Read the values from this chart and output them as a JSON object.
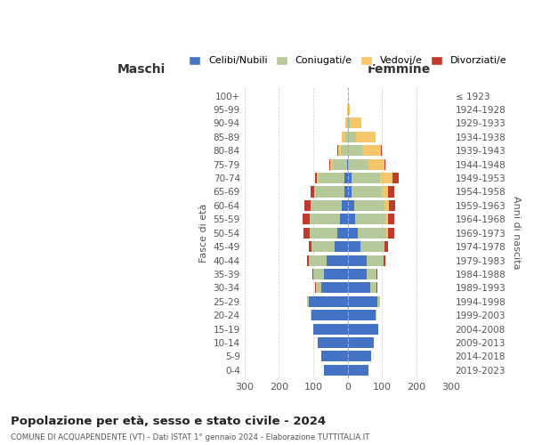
{
  "age_groups": [
    "0-4",
    "5-9",
    "10-14",
    "15-19",
    "20-24",
    "25-29",
    "30-34",
    "35-39",
    "40-44",
    "45-49",
    "50-54",
    "55-59",
    "60-64",
    "65-69",
    "70-74",
    "75-79",
    "80-84",
    "85-89",
    "90-94",
    "95-99",
    "100+"
  ],
  "birth_years": [
    "2019-2023",
    "2014-2018",
    "2009-2013",
    "2004-2008",
    "1999-2003",
    "1994-1998",
    "1989-1993",
    "1984-1988",
    "1979-1983",
    "1974-1978",
    "1969-1973",
    "1964-1968",
    "1959-1963",
    "1954-1958",
    "1949-1953",
    "1944-1948",
    "1939-1943",
    "1934-1938",
    "1929-1933",
    "1924-1928",
    "≤ 1923"
  ],
  "maschi": {
    "celibi": [
      68,
      78,
      88,
      100,
      105,
      112,
      78,
      68,
      62,
      38,
      30,
      22,
      18,
      10,
      10,
      1,
      0,
      0,
      0,
      0,
      0
    ],
    "coniugati": [
      0,
      0,
      0,
      0,
      2,
      5,
      15,
      32,
      52,
      68,
      80,
      88,
      88,
      85,
      75,
      42,
      20,
      8,
      3,
      0,
      0
    ],
    "vedovi": [
      0,
      0,
      0,
      0,
      0,
      0,
      0,
      0,
      0,
      0,
      0,
      0,
      2,
      2,
      5,
      8,
      8,
      8,
      5,
      1,
      0
    ],
    "divorziati": [
      0,
      0,
      0,
      0,
      0,
      0,
      2,
      2,
      5,
      8,
      18,
      20,
      18,
      10,
      5,
      2,
      2,
      0,
      0,
      0,
      0
    ]
  },
  "femmine": {
    "nubili": [
      60,
      68,
      75,
      88,
      82,
      85,
      65,
      55,
      55,
      38,
      30,
      22,
      18,
      10,
      10,
      2,
      0,
      0,
      0,
      0,
      0
    ],
    "coniugate": [
      0,
      0,
      0,
      0,
      2,
      8,
      18,
      28,
      50,
      68,
      82,
      88,
      88,
      88,
      85,
      58,
      42,
      25,
      5,
      0,
      0
    ],
    "vedove": [
      0,
      0,
      0,
      0,
      0,
      0,
      0,
      0,
      0,
      2,
      5,
      8,
      15,
      20,
      35,
      48,
      55,
      55,
      35,
      5,
      1
    ],
    "divorziate": [
      0,
      0,
      0,
      0,
      0,
      0,
      2,
      2,
      5,
      10,
      18,
      18,
      18,
      18,
      18,
      2,
      2,
      0,
      0,
      0,
      0
    ]
  },
  "colors": {
    "celibi": "#4472c4",
    "coniugati": "#b5c99a",
    "vedovi": "#f5c76a",
    "divorziati": "#c0392b"
  },
  "xlim": 300,
  "title": "Popolazione per età, sesso e stato civile - 2024",
  "subtitle": "COMUNE DI ACQUAPENDENTE (VT) - Dati ISTAT 1° gennaio 2024 - Elaborazione TUTTITALIA.IT",
  "ylabel_left": "Fasce di età",
  "ylabel_right": "Anni di nascita",
  "xlabel_left": "Maschi",
  "xlabel_right": "Femmine",
  "background_color": "#ffffff",
  "grid_color": "#cccccc"
}
